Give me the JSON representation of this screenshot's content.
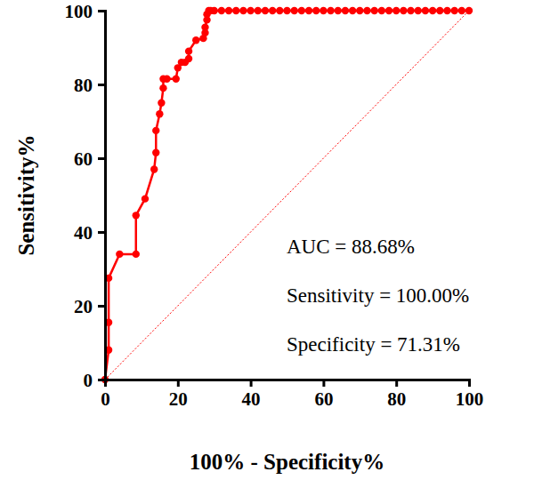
{
  "chart_data": {
    "type": "line",
    "x_label": "100% - Specificity%",
    "y_label": "Sensitivity%",
    "annotations": [
      "AUC = 88.68%",
      "Sensitivity = 100.00%",
      "Specificity = 71.31%"
    ],
    "x": [
      0,
      1,
      1,
      1,
      4,
      8.5,
      8.5,
      11,
      13.5,
      14,
      14,
      15,
      15.5,
      16,
      16,
      17,
      19.5,
      20,
      21,
      22,
      23,
      23,
      25,
      27,
      27.5,
      27.5,
      28,
      28,
      28.5,
      29,
      30,
      32,
      34,
      36,
      38,
      40,
      42,
      44,
      46,
      48,
      50,
      52,
      54,
      56,
      58,
      60,
      62,
      64,
      66,
      68,
      70,
      72,
      74,
      76,
      78,
      80,
      82,
      84,
      86,
      88,
      90,
      92,
      94,
      96,
      98,
      100
    ],
    "values": [
      0,
      8,
      15.5,
      27.5,
      34,
      34,
      44.5,
      49,
      57,
      61.5,
      67.5,
      72,
      75,
      79,
      81.5,
      81.5,
      81.5,
      84.5,
      86,
      86,
      87,
      89,
      92,
      92.5,
      94,
      95.5,
      97.5,
      99,
      100,
      100,
      100,
      100,
      100,
      100,
      100,
      100,
      100,
      100,
      100,
      100,
      100,
      100,
      100,
      100,
      100,
      100,
      100,
      100,
      100,
      100,
      100,
      100,
      100,
      100,
      100,
      100,
      100,
      100,
      100,
      100,
      100,
      100,
      100,
      100,
      100,
      100
    ],
    "color": "#ff0000",
    "marker": "circle",
    "line_style": "solid",
    "xlim": [
      0,
      100
    ],
    "ylim": [
      0,
      100
    ],
    "xticks": [
      0,
      20,
      40,
      60,
      80,
      100
    ],
    "yticks": [
      0,
      20,
      40,
      60,
      80,
      100
    ],
    "grid": false
  }
}
